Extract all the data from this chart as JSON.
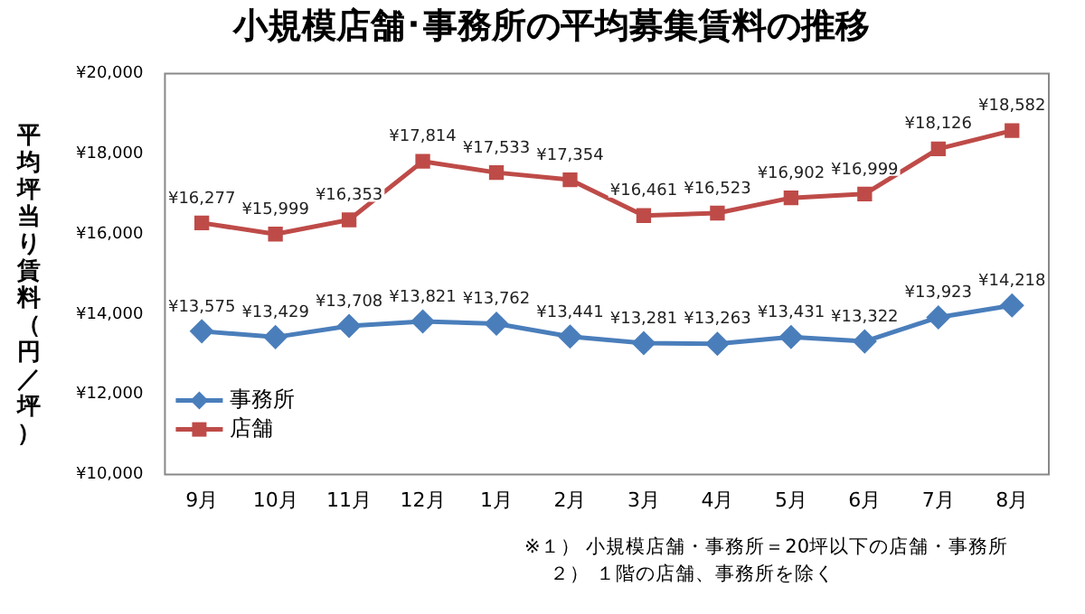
{
  "chart_data": {
    "type": "line",
    "title": "小規模店舗･事務所の平均募集賃料の推移",
    "ylabel": "平均坪当り賃料（円／坪）",
    "categories": [
      "9月",
      "10月",
      "11月",
      "12月",
      "1月",
      "2月",
      "3月",
      "4月",
      "5月",
      "6月",
      "7月",
      "8月"
    ],
    "series": [
      {
        "name": "事務所",
        "color": "#4a7ebb",
        "marker": "diamond",
        "values": [
          13575,
          13429,
          13708,
          13821,
          13762,
          13441,
          13281,
          13263,
          13431,
          13322,
          13923,
          14218
        ],
        "value_labels": [
          "¥13,575",
          "¥13,429",
          "¥13,708",
          "¥13,821",
          "¥13,762",
          "¥13,441",
          "¥13,281",
          "¥13,263",
          "¥13,431",
          "¥13,322",
          "¥13,923",
          "¥14,218"
        ]
      },
      {
        "name": "店舗",
        "color": "#be4b48",
        "marker": "square",
        "values": [
          16277,
          15999,
          16353,
          17814,
          17533,
          17354,
          16461,
          16523,
          16902,
          16999,
          18126,
          18582
        ],
        "value_labels": [
          "¥16,277",
          "¥15,999",
          "¥16,353",
          "¥17,814",
          "¥17,533",
          "¥17,354",
          "¥16,461",
          "¥16,523",
          "¥16,902",
          "¥16,999",
          "¥18,126",
          "¥18,582"
        ]
      }
    ],
    "ylim": [
      10000,
      20000
    ],
    "yticks": [
      {
        "value": 10000,
        "label": "¥10,000"
      },
      {
        "value": 12000,
        "label": "¥12,000"
      },
      {
        "value": 14000,
        "label": "¥14,000"
      },
      {
        "value": 16000,
        "label": "¥16,000"
      },
      {
        "value": 18000,
        "label": "¥18,000"
      },
      {
        "value": 20000,
        "label": "¥20,000"
      }
    ],
    "grid": false,
    "legend": "bottom left",
    "line_style": "solid",
    "annotations": [
      "※１） 小規模店舗・事務所＝20坪以下の店舗・事務所",
      "２） １階の店舗、事務所を除く"
    ]
  }
}
